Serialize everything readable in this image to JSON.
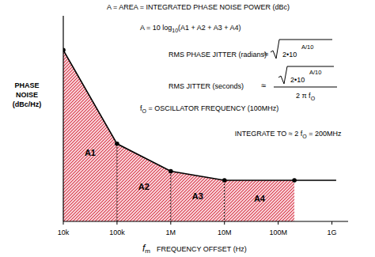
{
  "chart_data": {
    "type": "line",
    "log": "x",
    "grid": false,
    "tick_labels": "x",
    "color": "#d42a3c",
    "x_label": {
      "symbol": "f",
      "sub": "m",
      "text": "FREQUENCY OFFSET (Hz)"
    },
    "y_label": [
      "PHASE",
      "NOISE",
      "(dBc/Hz)"
    ],
    "x": [
      10000,
      100000,
      1000000,
      10000000,
      200000000,
      1200000000
    ],
    "series": [
      {
        "color": "#000000",
        "marker": "circle",
        "line_style": "solid",
        "values": [
          -75,
          -116,
          -128,
          -132,
          -132,
          -132
        ]
      }
    ],
    "xlim": [
      10000,
      2000000000
    ],
    "ylim": [
      -150,
      -60
    ],
    "xticks": [
      {
        "value": 10000,
        "label": "10k"
      },
      {
        "value": 100000,
        "label": "100k"
      },
      {
        "value": 1000000,
        "label": "1M"
      },
      {
        "value": 10000000,
        "label": "10M"
      },
      {
        "value": 100000000,
        "label": "100M"
      },
      {
        "value": 1000000000,
        "label": "1G"
      }
    ],
    "yticks": [],
    "areas": [
      {
        "label": "A1",
        "from": 10000,
        "to": 100000
      },
      {
        "label": "A2",
        "from": 100000,
        "to": 1000000
      },
      {
        "label": "A3",
        "from": 1000000,
        "to": 10000000
      },
      {
        "label": "A4",
        "from": 10000000,
        "to": 200000000
      }
    ],
    "annotations": {
      "area_def": "A =  AREA = INTEGRATED PHASE NOISE POWER (dBc)",
      "area_formula": {
        "prefix": "A = 10 log",
        "sub": "10",
        "suffix": "(A1 + A2 + A3 + A4)"
      },
      "phase_jitter": {
        "label": "RMS PHASE JITTER (radians)",
        "approx": "≈",
        "radicand": "2•10",
        "exponent": "A/10"
      },
      "rms_jitter": {
        "label": "RMS JITTER (seconds)",
        "approx": "≈",
        "radicand": "2•10",
        "exponent": "A/10",
        "denominator": "2 π f",
        "denominator_sub": "O"
      },
      "oscillator": {
        "symbol": "f",
        "sub": "O",
        "text": " = OSCILLATOR FREQUENCY (100MHz)"
      },
      "integrate": {
        "prefix": "INTEGRATE TO ≈ 2 f",
        "sub": "O",
        "suffix": " = 200MHz"
      }
    }
  }
}
